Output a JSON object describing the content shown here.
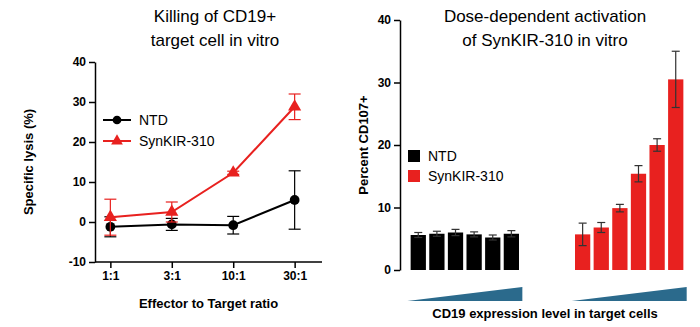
{
  "chart_data": [
    {
      "type": "line",
      "title": "Killing of CD19+ target cell in vitro",
      "x_label": "Effector  to Target ratio",
      "y_label": "Specific lysis (%)",
      "categories": [
        "1:1",
        "3:1",
        "10:1",
        "30:1"
      ],
      "ylim": [
        -10,
        40
      ],
      "yticks": [
        -10,
        0,
        10,
        20,
        30,
        40
      ],
      "legend": "upper left",
      "series": [
        {
          "name": "NTD",
          "color": "#000000",
          "marker": "circle",
          "values": [
            -1.2,
            -0.6,
            -0.8,
            5.5
          ],
          "errors": [
            2.5,
            1.5,
            2.2,
            7.3
          ]
        },
        {
          "name": "SynKIR-310",
          "color": "#e8211f",
          "marker": "triangle",
          "values": [
            1.2,
            2.5,
            12.3,
            28.8
          ],
          "errors": [
            4.5,
            2.5,
            0.4,
            3.2
          ]
        }
      ]
    },
    {
      "type": "bar",
      "title": "Dose-dependent activation of SynKIR-310 in vitro",
      "x_label": "CD19 expression level in target cells",
      "y_label": "Percent CD107+",
      "categories": [
        null,
        null,
        null,
        null,
        null,
        null
      ],
      "ylim": [
        0,
        40
      ],
      "yticks": [
        0,
        10,
        20,
        30,
        40
      ],
      "legend": "upper left",
      "tick_labels": "y",
      "series": [
        {
          "name": "NTD",
          "color": "#000000",
          "values": [
            5.6,
            5.8,
            6.0,
            5.7,
            5.2,
            5.8
          ],
          "errors": [
            0.4,
            0.4,
            0.5,
            0.4,
            0.4,
            0.5
          ]
        },
        {
          "name": "SynKIR-310",
          "color": "#e8211f",
          "values": [
            5.7,
            6.8,
            9.9,
            15.4,
            20.0,
            30.5
          ],
          "errors": [
            1.8,
            0.8,
            0.6,
            1.3,
            1.0,
            4.5
          ]
        }
      ]
    }
  ]
}
